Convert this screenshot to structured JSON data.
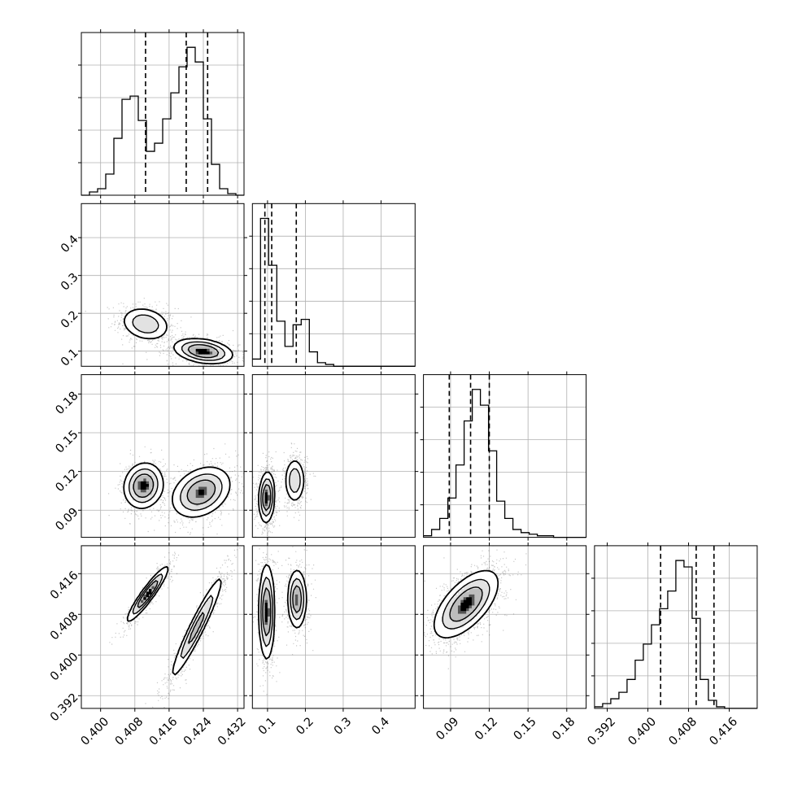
{
  "chart_data": {
    "type": "corner",
    "description_of_layout": "lower-triangular corner plot",
    "grid": true,
    "parameters": [
      {
        "ticks": [
          0.4,
          0.408,
          0.416,
          0.424,
          0.432
        ],
        "tick_labels": [
          "0.400",
          "0.408",
          "0.416",
          "0.424",
          "0.432"
        ],
        "range": [
          0.3955,
          0.4335
        ],
        "quantiles": [
          0.4105,
          0.42,
          0.425
        ],
        "histogram": {
          "edges_start": 0.3955,
          "bin_width": 0.0019,
          "counts": [
            0,
            2,
            4,
            13,
            35,
            59,
            61,
            46,
            27,
            32,
            47,
            63,
            79,
            91,
            82,
            47,
            19,
            4,
            1,
            0
          ]
        }
      },
      {
        "ticks": [
          0.1,
          0.2,
          0.3,
          0.4
        ],
        "tick_labels": [
          "0.1",
          "0.2",
          "0.3",
          "0.4"
        ],
        "range": [
          0.06,
          0.49
        ],
        "quantiles": [
          0.093,
          0.111,
          0.176
        ],
        "histogram": {
          "edges_start": 0.06,
          "bin_width": 0.0215,
          "counts": [
            4,
            82,
            56,
            25,
            11,
            23,
            26,
            8,
            2,
            1,
            0,
            0,
            0,
            0,
            0,
            0,
            0,
            0,
            0,
            0
          ]
        }
      },
      {
        "ticks": [
          0.09,
          0.12,
          0.15,
          0.18
        ],
        "tick_labels": [
          "0.09",
          "0.12",
          "0.15",
          "0.18"
        ],
        "range": [
          0.069,
          0.195
        ],
        "quantiles": [
          0.089,
          0.1055,
          0.12
        ],
        "histogram": {
          "edges_start": 0.069,
          "bin_width": 0.0063,
          "counts": [
            1,
            5,
            12,
            25,
            46,
            74,
            94,
            84,
            55,
            23,
            12,
            5,
            3,
            2,
            1,
            1,
            0,
            0,
            0,
            0
          ]
        }
      },
      {
        "ticks": [
          0.392,
          0.4,
          0.408,
          0.416
        ],
        "tick_labels": [
          "0.392",
          "0.400",
          "0.408",
          "0.416"
        ],
        "range": [
          0.3895,
          0.4215
        ],
        "quantiles": [
          0.4025,
          0.4095,
          0.413
        ],
        "histogram": {
          "edges_start": 0.3895,
          "bin_width": 0.0016,
          "counts": [
            1,
            3,
            6,
            10,
            18,
            30,
            40,
            52,
            62,
            73,
            92,
            88,
            56,
            18,
            5,
            1,
            0,
            0,
            0,
            0
          ]
        }
      }
    ],
    "joint_modes": [
      {
        "pair": [
          1,
          0
        ],
        "modes": [
          {
            "center": [
              0.4105,
              0.172
            ],
            "sd": [
              0.0028,
              0.022
            ],
            "rho": -0.2,
            "weight": 0.4
          },
          {
            "center": [
              0.424,
              0.1
            ],
            "sd": [
              0.0033,
              0.016
            ],
            "rho": -0.3,
            "weight": 0.6
          }
        ]
      },
      {
        "pair": [
          2,
          0
        ],
        "modes": [
          {
            "center": [
              0.41,
              0.109
            ],
            "sd": [
              0.0022,
              0.0085
            ],
            "rho": 0.1,
            "weight": 0.4
          },
          {
            "center": [
              0.4235,
              0.104
            ],
            "sd": [
              0.0033,
              0.0095
            ],
            "rho": 0.3,
            "weight": 0.6
          }
        ]
      },
      {
        "pair": [
          2,
          1
        ],
        "modes": [
          {
            "center": [
              0.098,
              0.1
            ],
            "sd": [
              0.01,
              0.0095
            ],
            "rho": 0.1,
            "weight": 0.6
          },
          {
            "center": [
              0.172,
              0.113
            ],
            "sd": [
              0.013,
              0.0085
            ],
            "rho": 0.0,
            "weight": 0.4
          }
        ]
      },
      {
        "pair": [
          3,
          0
        ],
        "modes": [
          {
            "center": [
              0.411,
              0.412
            ],
            "sd": [
              0.0023,
              0.0026
            ],
            "rho": 0.93,
            "weight": 0.4
          },
          {
            "center": [
              0.4225,
              0.4055
            ],
            "sd": [
              0.003,
              0.005
            ],
            "rho": 0.95,
            "weight": 0.6
          }
        ]
      },
      {
        "pair": [
          3,
          1
        ],
        "modes": [
          {
            "center": [
              0.098,
              0.4085
            ],
            "sd": [
              0.01,
              0.0045
            ],
            "rho": 0.0,
            "weight": 0.6
          },
          {
            "center": [
              0.178,
              0.411
            ],
            "sd": [
              0.012,
              0.0028
            ],
            "rho": 0.0,
            "weight": 0.4
          }
        ]
      },
      {
        "pair": [
          3,
          2
        ],
        "modes": [
          {
            "center": [
              0.102,
              0.41
            ],
            "sd": [
              0.012,
              0.0032
            ],
            "rho": 0.62,
            "weight": 1.0
          }
        ]
      }
    ]
  }
}
